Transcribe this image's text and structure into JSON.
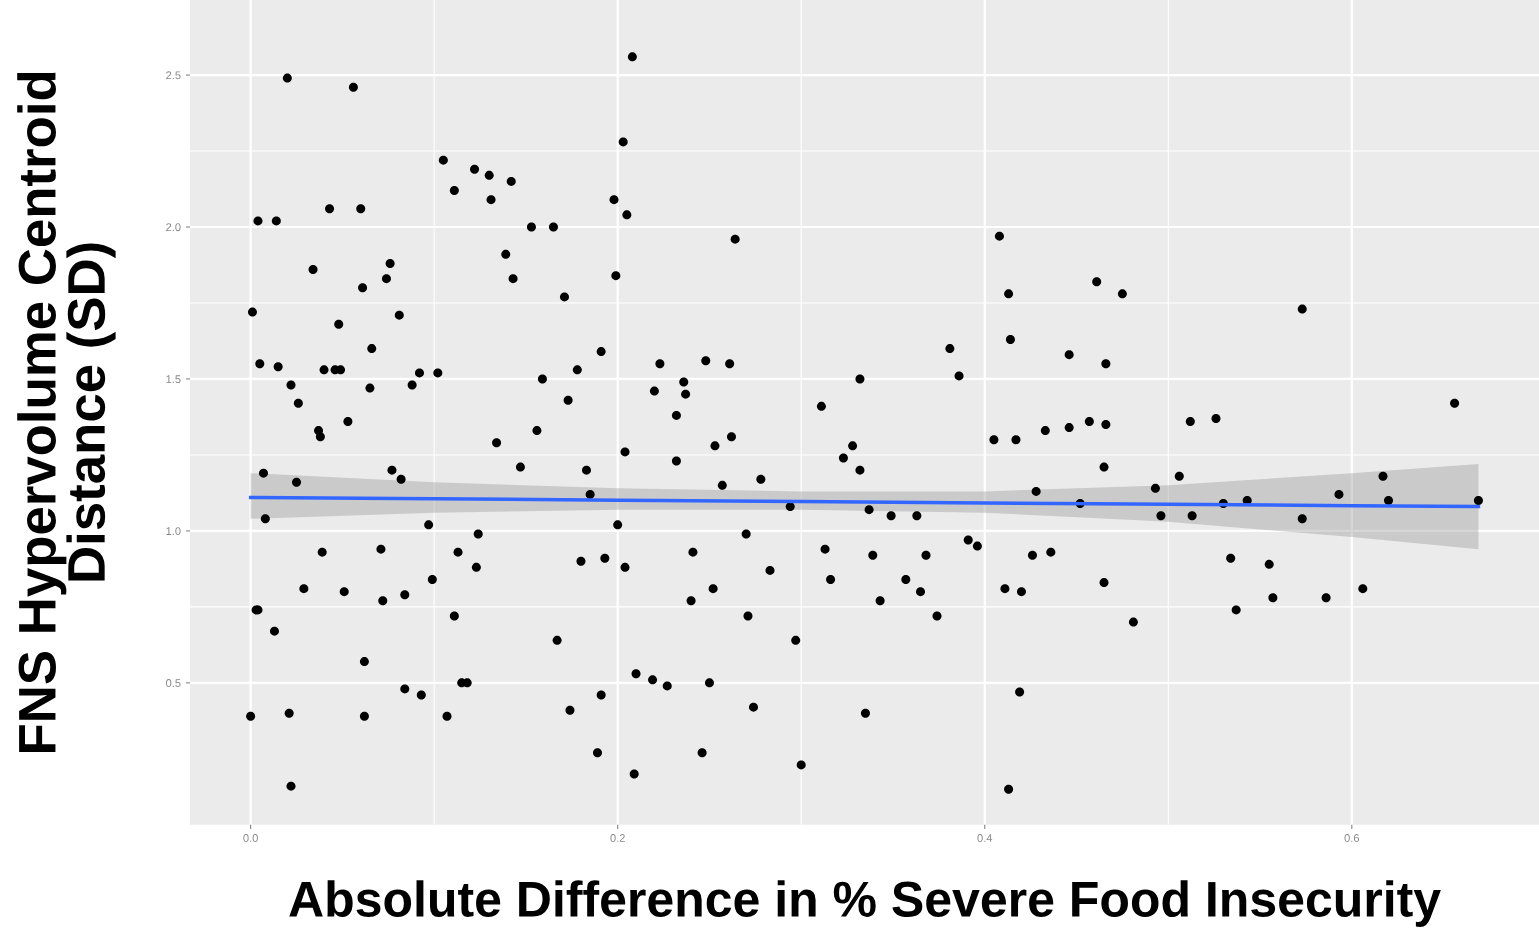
{
  "chart_data": {
    "type": "scatter",
    "xlabel": "Absolute Difference in % Severe Food Insecurity",
    "ylabel": "FNS Hypervolume Centroid\nDistance (SD)",
    "xlim": [
      -0.033,
      0.702
    ],
    "ylim": [
      0.033,
      2.747
    ],
    "xticks": [
      {
        "value": 0,
        "label": "0.0"
      },
      0.2,
      0.4,
      0.6
    ],
    "yticks": [
      0.5,
      {
        "value": 1,
        "label": "1.0"
      },
      1.5,
      {
        "value": 2,
        "label": "2.0"
      },
      2.5
    ],
    "grid": true,
    "marker": "circle",
    "series": [
      {
        "color": "#000000",
        "x": [
          0.001,
          0.004,
          0.005,
          0.0,
          0.014,
          0.02,
          0.007,
          0.008,
          0.003,
          0.004,
          0.013,
          0.015,
          0.022,
          0.025,
          0.026,
          0.029,
          0.021,
          0.022,
          0.034,
          0.037,
          0.038,
          0.039,
          0.04,
          0.043,
          0.046,
          0.048,
          0.049,
          0.051,
          0.053,
          0.056,
          0.06,
          0.061,
          0.062,
          0.062,
          0.065,
          0.066,
          0.071,
          0.072,
          0.074,
          0.076,
          0.077,
          0.081,
          0.082,
          0.084,
          0.084,
          0.088,
          0.092,
          0.093,
          0.097,
          0.099,
          0.102,
          0.105,
          0.107,
          0.111,
          0.115,
          0.113,
          0.111,
          0.118,
          0.122,
          0.123,
          0.124,
          0.13,
          0.131,
          0.134,
          0.139,
          0.142,
          0.143,
          0.147,
          0.153,
          0.156,
          0.159,
          0.165,
          0.167,
          0.171,
          0.173,
          0.174,
          0.178,
          0.18,
          0.183,
          0.185,
          0.189,
          0.191,
          0.191,
          0.193,
          0.198,
          0.199,
          0.203,
          0.205,
          0.208,
          0.209,
          0.21,
          0.2,
          0.204,
          0.204,
          0.219,
          0.22,
          0.223,
          0.227,
          0.232,
          0.232,
          0.236,
          0.237,
          0.24,
          0.241,
          0.246,
          0.248,
          0.25,
          0.252,
          0.253,
          0.257,
          0.261,
          0.262,
          0.264,
          0.27,
          0.271,
          0.274,
          0.278,
          0.283,
          0.294,
          0.297,
          0.3,
          0.311,
          0.313,
          0.316,
          0.323,
          0.328,
          0.332,
          0.332,
          0.337,
          0.339,
          0.335,
          0.343,
          0.349,
          0.357,
          0.363,
          0.365,
          0.368,
          0.374,
          0.381,
          0.386,
          0.391,
          0.396,
          0.405,
          0.408,
          0.413,
          0.414,
          0.411,
          0.42,
          0.419,
          0.413,
          0.417,
          0.426,
          0.428,
          0.433,
          0.436,
          0.446,
          0.446,
          0.452,
          0.457,
          0.461,
          0.466,
          0.466,
          0.465,
          0.465,
          0.475,
          0.481,
          0.493,
          0.496,
          0.506,
          0.512,
          0.513,
          0.526,
          0.53,
          0.534,
          0.537,
          0.543,
          0.555,
          0.557,
          0.573,
          0.573,
          0.586,
          0.593,
          0.606,
          0.617,
          0.62,
          0.656,
          0.669
        ],
        "values": [
          1.72,
          2.02,
          1.55,
          0.39,
          2.02,
          2.49,
          1.19,
          1.04,
          0.74,
          0.74,
          0.67,
          1.54,
          1.48,
          1.16,
          1.42,
          0.81,
          0.4,
          0.16,
          1.86,
          1.33,
          1.31,
          0.93,
          1.53,
          2.06,
          1.53,
          1.68,
          1.53,
          0.8,
          1.36,
          2.46,
          2.06,
          1.8,
          0.57,
          0.39,
          1.47,
          1.6,
          0.94,
          0.77,
          1.83,
          1.88,
          1.2,
          1.71,
          1.17,
          0.79,
          0.48,
          1.48,
          1.52,
          0.46,
          1.02,
          0.84,
          1.52,
          2.22,
          0.39,
          2.12,
          0.5,
          0.93,
          0.72,
          0.5,
          2.19,
          0.88,
          0.99,
          2.17,
          2.09,
          1.29,
          1.91,
          2.15,
          1.83,
          1.21,
          2.0,
          1.33,
          1.5,
          2.0,
          0.64,
          1.77,
          1.43,
          0.41,
          1.53,
          0.9,
          1.2,
          1.12,
          0.27,
          1.59,
          0.46,
          0.91,
          2.09,
          1.84,
          2.28,
          2.04,
          2.56,
          0.2,
          0.53,
          1.02,
          1.26,
          0.88,
          0.51,
          1.46,
          1.55,
          0.49,
          1.38,
          1.23,
          1.49,
          1.45,
          0.77,
          0.93,
          0.27,
          1.56,
          0.5,
          0.81,
          1.28,
          1.15,
          1.55,
          1.31,
          1.96,
          0.99,
          0.72,
          0.42,
          1.17,
          0.87,
          1.08,
          0.64,
          0.23,
          1.41,
          0.94,
          0.84,
          1.24,
          1.28,
          1.5,
          1.2,
          1.07,
          0.92,
          0.4,
          0.77,
          1.05,
          0.84,
          1.05,
          0.8,
          0.92,
          0.72,
          1.6,
          1.51,
          0.97,
          0.95,
          1.3,
          1.97,
          1.78,
          1.63,
          0.81,
          0.8,
          0.47,
          0.15,
          1.3,
          0.92,
          1.13,
          1.33,
          0.93,
          1.58,
          1.34,
          1.09,
          1.36,
          1.82,
          1.55,
          1.35,
          0.83,
          1.21,
          1.78,
          0.7,
          1.14,
          1.05,
          1.18,
          1.36,
          1.05,
          1.37,
          1.09,
          0.91,
          0.74,
          1.1,
          0.89,
          0.78,
          1.73,
          1.04,
          0.78,
          1.12,
          0.81,
          1.18,
          1.1,
          1.42,
          1.1
        ]
      },
      {
        "type": "line",
        "color": "#3366ff",
        "marker": "none",
        "x": [
          0,
          0.1,
          0.2,
          0.3,
          0.4,
          0.5,
          0.6,
          0.669
        ],
        "values": [
          1.11,
          1.106,
          1.101,
          1.097,
          1.092,
          1.088,
          1.083,
          1.08
        ],
        "lower": [
          1.04,
          1.06,
          1.07,
          1.07,
          1.06,
          1.03,
          0.98,
          0.94
        ],
        "upper": [
          1.19,
          1.16,
          1.14,
          1.13,
          1.13,
          1.15,
          1.19,
          1.22
        ]
      }
    ]
  }
}
